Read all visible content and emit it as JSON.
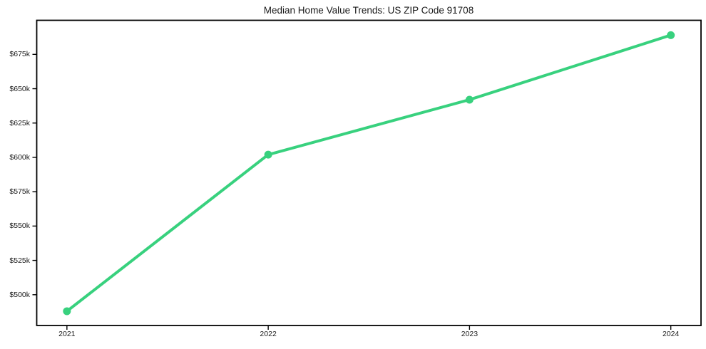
{
  "chart_data": {
    "type": "line",
    "title": "Median Home Value Trends: US ZIP Code 91708",
    "x": [
      2021,
      2022,
      2023,
      2024
    ],
    "x_tick_labels": [
      "2021",
      "2022",
      "2023",
      "2024"
    ],
    "series": [
      {
        "name": "Median Home Value",
        "values": [
          488000,
          602000,
          642000,
          689000
        ]
      }
    ],
    "y_ticks": [
      500000,
      525000,
      550000,
      575000,
      600000,
      625000,
      650000,
      675000
    ],
    "y_tick_labels": [
      "$500k",
      "$525k",
      "$550k",
      "$575k",
      "$600k",
      "$625k",
      "$650k",
      "$675k"
    ],
    "xlim": [
      2020.85,
      2024.15
    ],
    "ylim": [
      477600,
      699800
    ],
    "grid": false,
    "legend_position": "none",
    "line_color": "#38d17e",
    "marker": "circle",
    "text_color": "#1a1a1a",
    "spine_color": "#000000",
    "background_color": "#ffffff"
  }
}
